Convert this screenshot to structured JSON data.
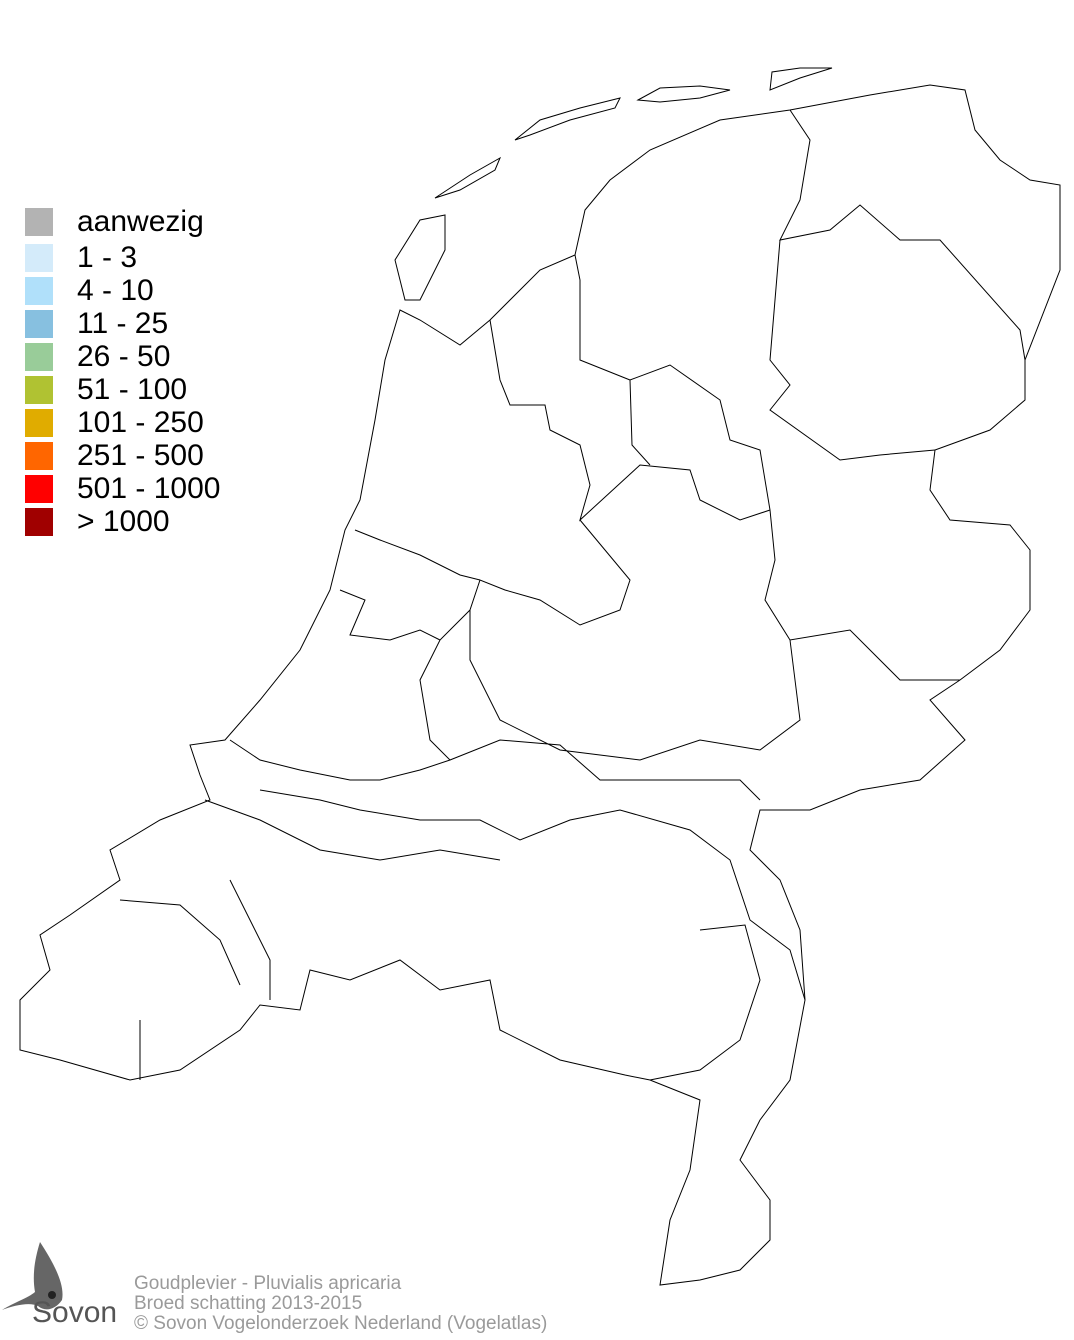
{
  "legend": {
    "items": [
      {
        "label": "aanwezig",
        "color": "#b3b3b3"
      },
      {
        "label": "1 - 3",
        "color": "#d4ebfa"
      },
      {
        "label": "4 - 10",
        "color": "#b0e0fa"
      },
      {
        "label": "11 - 25",
        "color": "#87c0e0"
      },
      {
        "label": "26 - 50",
        "color": "#99cc99"
      },
      {
        "label": "51 - 100",
        "color": "#b0c232"
      },
      {
        "label": "101 - 250",
        "color": "#e0ac00"
      },
      {
        "label": "251 - 500",
        "color": "#ff6600"
      },
      {
        "label": "501 - 1000",
        "color": "#ff0000"
      },
      {
        "label": "> 1000",
        "color": "#a00000"
      }
    ]
  },
  "footer": {
    "species": "Goudplevier - Pluvialis apricaria",
    "subtitle": "Broed schatting 2013-2015",
    "copyright": "© Sovon Vogelonderzoek Nederland (Vogelatlas)"
  },
  "logo": {
    "text": "Sovon",
    "icon": "swallow-icon"
  }
}
